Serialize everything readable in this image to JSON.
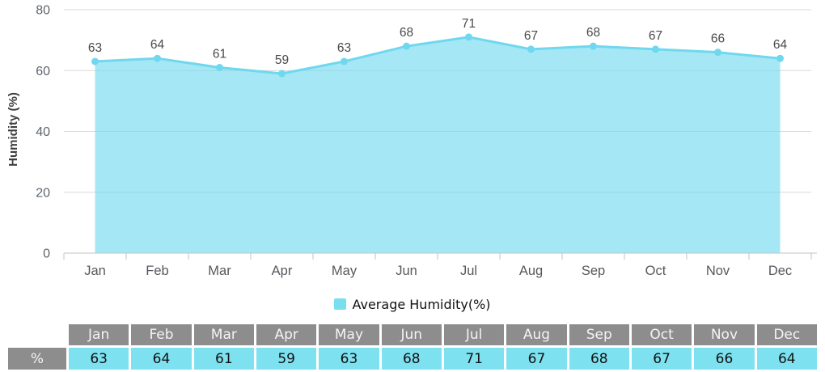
{
  "chart_data": {
    "type": "area",
    "title": "",
    "categories": [
      "Jan",
      "Feb",
      "Mar",
      "Apr",
      "May",
      "Jun",
      "Jul",
      "Aug",
      "Sep",
      "Oct",
      "Nov",
      "Dec"
    ],
    "series": [
      {
        "name": "Average Humidity(%)",
        "values": [
          63,
          64,
          61,
          59,
          63,
          68,
          71,
          67,
          68,
          67,
          66,
          64
        ]
      }
    ],
    "xlabel": "",
    "ylabel": "Humidity (%)",
    "ylim": [
      0,
      80
    ],
    "yticks": [
      0,
      20,
      40,
      60,
      80
    ],
    "grid": "horizontal",
    "legend_position": "bottom",
    "data_labels": true,
    "colors": {
      "series_line": "#6fd8ef",
      "series_fill": "rgba(111,216,239,0.62)",
      "marker": "#6fd8ef",
      "gridline": "#d9d9d9",
      "axis_line": "#c3c3c3",
      "tick_label": "#5d646e",
      "month_label": "#55585c",
      "data_label": "#4a4a4a",
      "axis_title": "#3f3f3f"
    }
  },
  "legend": {
    "label": "Average Humidity(%)",
    "swatch_color": "#78dff1"
  },
  "table": {
    "corner_label": "",
    "row_label": "%",
    "columns": [
      "Jan",
      "Feb",
      "Mar",
      "Apr",
      "May",
      "Jun",
      "Jul",
      "Aug",
      "Sep",
      "Oct",
      "Nov",
      "Dec"
    ],
    "values": [
      63,
      64,
      61,
      59,
      63,
      68,
      71,
      67,
      68,
      67,
      66,
      64
    ],
    "colors": {
      "header_bg": "#8d8d8d",
      "header_text": "#f4f4f4",
      "value_bg": "#7de1f0",
      "value_text": "#121212"
    }
  }
}
